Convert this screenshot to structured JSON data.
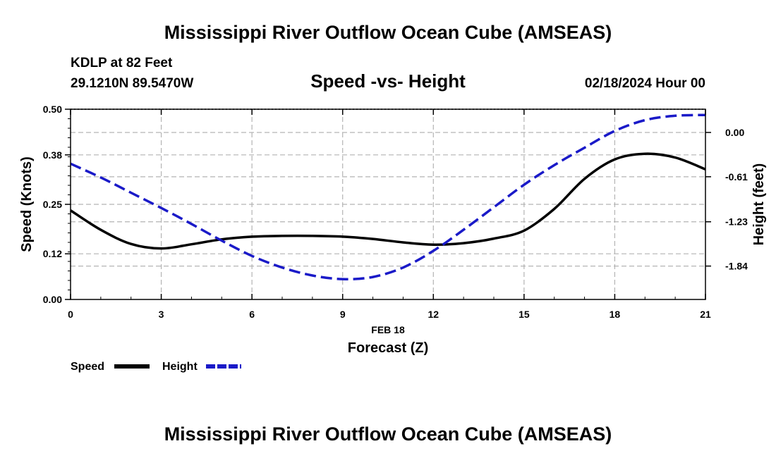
{
  "page_title": "Mississippi River Outflow Ocean Cube (AMSEAS)",
  "footer_title": "Mississippi River Outflow Ocean Cube (AMSEAS)",
  "station": {
    "name": "KDLP at 82 Feet",
    "coords": "29.1210N  89.5470W",
    "datetime": "02/18/2024 Hour 00"
  },
  "legend": {
    "speed_label": "Speed",
    "height_label": "Height"
  },
  "colors": {
    "speed": "#000000",
    "height": "#1a1ac8",
    "grid": "#b4b4b4"
  },
  "chart_data": {
    "type": "line",
    "title": "Speed -vs- Height",
    "date_label": "FEB 18",
    "xlabel": "Forecast (Z)",
    "ylabel": "Speed (Knots)",
    "y2label": "Height (feet)",
    "x_ticks": [
      "0",
      "3",
      "6",
      "9",
      "12",
      "15",
      "18",
      "21"
    ],
    "xlim": [
      0,
      21
    ],
    "ylim": [
      0,
      0.5
    ],
    "y_ticks": [
      "0.00",
      "0.12",
      "0.25",
      "0.38",
      "0.50"
    ],
    "y2lim": [
      -2.3,
      0.32
    ],
    "y2_ticks": [
      "-1.84",
      "-1.23",
      "-0.61",
      "0.00"
    ],
    "series": [
      {
        "name": "Speed",
        "axis": "left",
        "style": "solid",
        "x": [
          0,
          1,
          2,
          3,
          4,
          5,
          6,
          7,
          8,
          9,
          10,
          11,
          12,
          13,
          14,
          15,
          16,
          17,
          18,
          19,
          20,
          21
        ],
        "values": [
          0.234,
          0.183,
          0.146,
          0.134,
          0.145,
          0.158,
          0.165,
          0.167,
          0.167,
          0.165,
          0.159,
          0.15,
          0.144,
          0.148,
          0.16,
          0.181,
          0.238,
          0.317,
          0.368,
          0.383,
          0.373,
          0.342
        ]
      },
      {
        "name": "Height",
        "axis": "right",
        "style": "dashed",
        "x": [
          0,
          1,
          2,
          3,
          4,
          5,
          6,
          7,
          8,
          9,
          10,
          11,
          12,
          13,
          14,
          15,
          16,
          17,
          18,
          19,
          20,
          21
        ],
        "values": [
          -0.43,
          -0.62,
          -0.83,
          -1.04,
          -1.26,
          -1.49,
          -1.7,
          -1.86,
          -1.97,
          -2.02,
          -1.99,
          -1.86,
          -1.63,
          -1.34,
          -1.03,
          -0.72,
          -0.45,
          -0.21,
          0.02,
          0.17,
          0.23,
          0.24
        ]
      }
    ]
  }
}
